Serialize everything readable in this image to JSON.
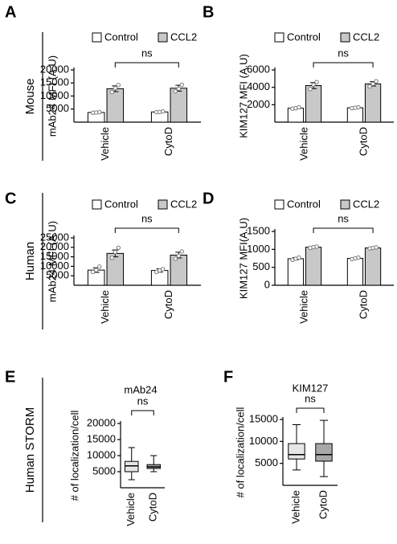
{
  "row_labels": [
    "Mouse",
    "Human",
    "Human STORM"
  ],
  "chart_data": [
    {
      "panel": "A",
      "type": "bar",
      "y_label": "mAb24 MFI (A.U)",
      "categories": [
        "Vehicle",
        "CytoD"
      ],
      "series": [
        {
          "name": "Control",
          "color": "#ffffff",
          "values": [
            3700,
            3900
          ],
          "errors": [
            150,
            250
          ],
          "points": [
            [
              3600,
              3700,
              3800
            ],
            [
              3800,
              3900,
              4100
            ]
          ]
        },
        {
          "name": "CCL2",
          "color": "#c8c8c8",
          "values": [
            12800,
            13000
          ],
          "errors": [
            1100,
            1100
          ],
          "points": [
            [
              11500,
              13000,
              14200
            ],
            [
              11800,
              12800,
              14300
            ]
          ]
        }
      ],
      "ylim": [
        0,
        20000
      ],
      "yticks": [
        5000,
        10000,
        15000,
        20000
      ],
      "annotation": "ns"
    },
    {
      "panel": "B",
      "type": "bar",
      "y_label": "KIM127 MFI (A.U)",
      "categories": [
        "Vehicle",
        "CytoD"
      ],
      "series": [
        {
          "name": "Control",
          "color": "#ffffff",
          "values": [
            1600,
            1650
          ],
          "errors": [
            80,
            60
          ],
          "points": [
            [
              1550,
              1600,
              1700
            ],
            [
              1600,
              1650,
              1700
            ]
          ]
        },
        {
          "name": "CCL2",
          "color": "#c8c8c8",
          "values": [
            4200,
            4400
          ],
          "errors": [
            350,
            250
          ],
          "points": [
            [
              3800,
              4300,
              4600
            ],
            [
              4100,
              4400,
              4700
            ]
          ]
        }
      ],
      "ylim": [
        0,
        6000
      ],
      "yticks": [
        2000,
        4000,
        6000
      ],
      "annotation": "ns"
    },
    {
      "panel": "C",
      "type": "bar",
      "y_label": "mAb24 MFI (A.U)",
      "categories": [
        "Vehicle",
        "CytoD"
      ],
      "series": [
        {
          "name": "Control",
          "color": "#ffffff",
          "values": [
            8000,
            7800
          ],
          "errors": [
            1200,
            900
          ],
          "points": [
            [
              7000,
              8000,
              9800
            ],
            [
              7000,
              7800,
              8500
            ]
          ]
        },
        {
          "name": "CCL2",
          "color": "#c8c8c8",
          "values": [
            16800,
            15900
          ],
          "errors": [
            1800,
            1500
          ],
          "points": [
            [
              14500,
              17500,
              19800
            ],
            [
              14000,
              15500,
              17800
            ]
          ]
        }
      ],
      "ylim": [
        0,
        25000
      ],
      "yticks": [
        5000,
        10000,
        15000,
        20000,
        25000
      ],
      "annotation": "ns"
    },
    {
      "panel": "D",
      "type": "bar",
      "y_label": "KIM127 MFI(A.U)",
      "categories": [
        "Vehicle",
        "CytoD"
      ],
      "series": [
        {
          "name": "Control",
          "color": "#ffffff",
          "values": [
            740,
            750
          ],
          "errors": [
            30,
            20
          ],
          "points": [
            [
              710,
              740,
              770
            ],
            [
              730,
              750,
              770
            ]
          ]
        },
        {
          "name": "CCL2",
          "color": "#c8c8c8",
          "values": [
            1060,
            1040
          ],
          "errors": [
            15,
            15
          ],
          "points": [
            [
              1045,
              1060,
              1075
            ],
            [
              1025,
              1040,
              1055
            ]
          ]
        }
      ],
      "ylim": [
        0,
        1500
      ],
      "yticks": [
        0,
        500,
        1000,
        1500
      ],
      "annotation": "ns"
    },
    {
      "panel": "E",
      "type": "box",
      "title": "mAb24",
      "y_label": "# of localization/cell",
      "categories": [
        "Vehicle",
        "CytoD"
      ],
      "boxes": [
        {
          "color": "#e6e6e6",
          "min": 2500,
          "q1": 5000,
          "median": 6800,
          "q3": 8200,
          "max": 12500
        },
        {
          "color": "#a8a8a8",
          "min": 5000,
          "q1": 6000,
          "median": 6500,
          "q3": 7200,
          "max": 10000
        }
      ],
      "ylim": [
        0,
        20000
      ],
      "yticks": [
        5000,
        10000,
        15000,
        20000
      ],
      "annotation": "ns"
    },
    {
      "panel": "F",
      "type": "box",
      "title": "KIM127",
      "y_label": "# of localization/cell",
      "categories": [
        "Vehicle",
        "CytoD"
      ],
      "boxes": [
        {
          "color": "#e6e6e6",
          "min": 3500,
          "q1": 6000,
          "median": 7000,
          "q3": 9500,
          "max": 13800
        },
        {
          "color": "#a8a8a8",
          "min": 2000,
          "q1": 5500,
          "median": 7000,
          "q3": 9500,
          "max": 14800
        }
      ],
      "ylim": [
        0,
        15000
      ],
      "yticks": [
        5000,
        10000,
        15000
      ],
      "annotation": "ns"
    }
  ]
}
